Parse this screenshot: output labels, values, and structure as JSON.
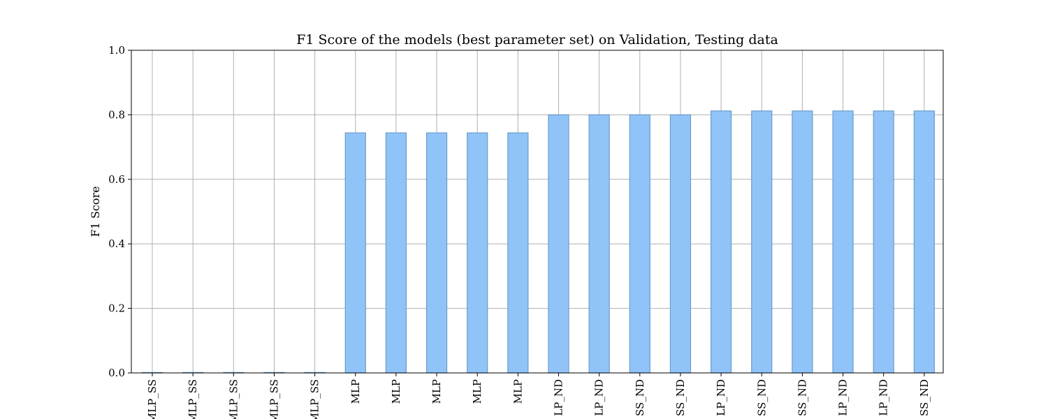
{
  "chart_data": {
    "type": "bar",
    "title": "F1 Score of the models (best parameter set) on Validation, Testing data",
    "xlabel": "",
    "ylabel": "F1 Score",
    "ylim": [
      0,
      1.0
    ],
    "yticks": [
      "0.0",
      "0.2",
      "0.4",
      "0.6",
      "0.8",
      "1.0"
    ],
    "grid": true,
    "categories": [
      "MLP_SS",
      "MLP_SS",
      "MLP_SS",
      "MLP_SS",
      "MLP_SS",
      "MLP",
      "MLP",
      "MLP",
      "MLP",
      "MLP",
      "LP_ND",
      "LP_ND",
      "SS_ND",
      "SS_ND",
      "LP_ND",
      "SS_ND",
      "SS_ND",
      "LP_ND",
      "LP_ND",
      "SS_ND"
    ],
    "values": [
      0.0,
      0.0,
      0.0,
      0.0,
      0.0,
      0.744,
      0.744,
      0.744,
      0.744,
      0.744,
      0.8,
      0.8,
      0.8,
      0.8,
      0.812,
      0.812,
      0.812,
      0.812,
      0.812,
      0.812
    ],
    "bar_color": "#90c4f9",
    "bar_edge_color": "#6a9ccb"
  }
}
